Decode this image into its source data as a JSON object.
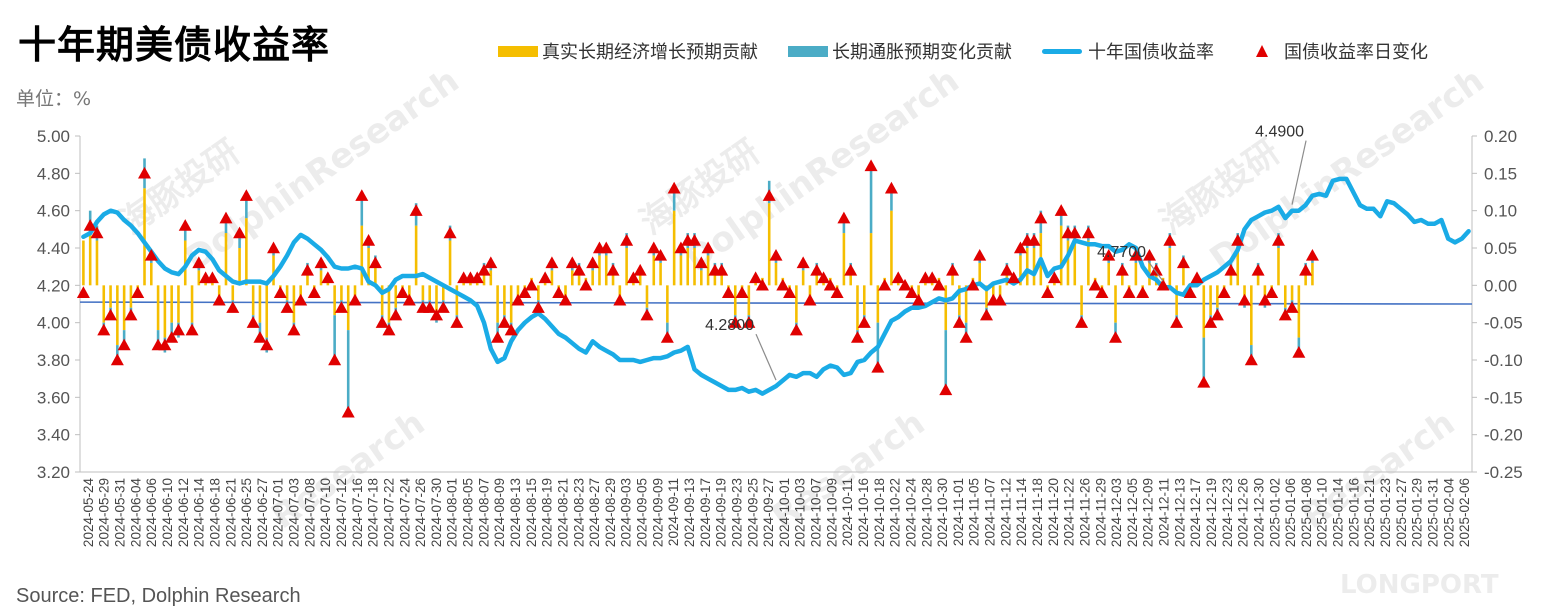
{
  "title": "十年期美债收益率",
  "unit_label": "单位：%",
  "source": "Source: FED, Dolphin Research",
  "watermarks": [
    "海豚投研",
    "DolphinResearch",
    "Research",
    "LONGPORT"
  ],
  "legend": [
    {
      "label": "真实长期经济增长预期贡献",
      "kind": "bar",
      "color": "#f5be00"
    },
    {
      "label": "长期通胀预期变化贡献",
      "kind": "bar",
      "color": "#4bacc6"
    },
    {
      "label": "十年国债收益率",
      "kind": "line",
      "color": "#1aabe6"
    },
    {
      "label": "国债收益率日变化",
      "kind": "marker",
      "color": "#e00000"
    }
  ],
  "annotations": [
    {
      "text": "4.2800",
      "date_index": 102
    },
    {
      "text": "4.7700",
      "date_index": 159
    },
    {
      "text": "4.4900",
      "date_index": 178
    }
  ],
  "chart_data": {
    "type": "line",
    "title": "十年期美债收益率",
    "ylabel": "%",
    "y_left": {
      "min": 3.2,
      "max": 5.0,
      "ticks": [
        "3.20",
        "3.40",
        "3.60",
        "3.80",
        "4.00",
        "4.20",
        "4.40",
        "4.60",
        "4.80",
        "5.00"
      ]
    },
    "y_right": {
      "min": -0.25,
      "max": 0.2,
      "ticks": [
        "-0.25",
        "-0.20",
        "-0.15",
        "-0.10",
        "-0.05",
        "0.00",
        "0.05",
        "0.10",
        "0.15",
        "0.20"
      ]
    },
    "x_tick_labels": [
      "2024-05-24",
      "2024-05-29",
      "2024-05-31",
      "2024-06-04",
      "2024-06-06",
      "2024-06-10",
      "2024-06-12",
      "2024-06-14",
      "2024-06-18",
      "2024-06-21",
      "2024-06-25",
      "2024-06-27",
      "2024-07-01",
      "2024-07-03",
      "2024-07-08",
      "2024-07-10",
      "2024-07-12",
      "2024-07-16",
      "2024-07-18",
      "2024-07-22",
      "2024-07-24",
      "2024-07-26",
      "2024-07-30",
      "2024-08-01",
      "2024-08-05",
      "2024-08-07",
      "2024-08-09",
      "2024-08-13",
      "2024-08-15",
      "2024-08-19",
      "2024-08-21",
      "2024-08-23",
      "2024-08-27",
      "2024-08-29",
      "2024-09-03",
      "2024-09-05",
      "2024-09-09",
      "2024-09-11",
      "2024-09-13",
      "2024-09-17",
      "2024-09-19",
      "2024-09-23",
      "2024-09-25",
      "2024-09-27",
      "2024-10-01",
      "2024-10-03",
      "2024-10-07",
      "2024-10-09",
      "2024-10-11",
      "2024-10-16",
      "2024-10-18",
      "2024-10-22",
      "2024-10-24",
      "2024-10-28",
      "2024-10-30",
      "2024-11-01",
      "2024-11-05",
      "2024-11-07",
      "2024-11-12",
      "2024-11-14",
      "2024-11-18",
      "2024-11-20",
      "2024-11-22",
      "2024-11-26",
      "2024-11-29",
      "2024-12-03",
      "2024-12-05",
      "2024-12-09",
      "2024-12-11",
      "2024-12-13",
      "2024-12-17",
      "2024-12-19",
      "2024-12-23",
      "2024-12-26",
      "2024-12-30",
      "2025-01-02",
      "2025-01-06",
      "2025-01-08",
      "2025-01-10",
      "2025-01-14",
      "2025-01-16",
      "2025-01-21",
      "2025-01-23",
      "2025-01-27",
      "2025-01-29",
      "2025-01-31",
      "2025-02-04",
      "2025-02-06"
    ],
    "trend_line": {
      "from": 4.11,
      "to": 4.1
    },
    "series": [
      {
        "name": "十年国债收益率",
        "axis": "left",
        "values": [
          4.46,
          4.48,
          4.54,
          4.58,
          4.6,
          4.59,
          4.55,
          4.52,
          4.48,
          4.43,
          4.38,
          4.33,
          4.29,
          4.27,
          4.26,
          4.3,
          4.36,
          4.39,
          4.38,
          4.34,
          4.28,
          4.25,
          4.22,
          4.21,
          4.22,
          4.22,
          4.22,
          4.21,
          4.25,
          4.3,
          4.36,
          4.43,
          4.47,
          4.45,
          4.42,
          4.39,
          4.35,
          4.3,
          4.29,
          4.29,
          4.3,
          4.29,
          4.22,
          4.2,
          4.16,
          4.18,
          4.23,
          4.25,
          4.25,
          4.25,
          4.26,
          4.24,
          4.22,
          4.2,
          4.18,
          4.16,
          4.14,
          4.12,
          4.09,
          4.0,
          3.86,
          3.79,
          3.81,
          3.9,
          3.96,
          4.0,
          4.03,
          4.05,
          4.02,
          3.98,
          3.94,
          3.92,
          3.89,
          3.86,
          3.84,
          3.9,
          3.87,
          3.85,
          3.83,
          3.8,
          3.8,
          3.8,
          3.79,
          3.8,
          3.81,
          3.81,
          3.82,
          3.84,
          3.85,
          3.87,
          3.75,
          3.72,
          3.7,
          3.68,
          3.66,
          3.64,
          3.64,
          3.65,
          3.63,
          3.64,
          3.62,
          3.64,
          3.66,
          3.69,
          3.72,
          3.71,
          3.73,
          3.73,
          3.71,
          3.75,
          3.77,
          3.76,
          3.72,
          3.73,
          3.79,
          3.8,
          3.84,
          3.87,
          3.94,
          4.01,
          4.03,
          4.06,
          4.08,
          4.08,
          4.09,
          4.11,
          4.13,
          4.12,
          4.13,
          4.17,
          4.18,
          4.2,
          4.21,
          4.18,
          4.21,
          4.22,
          4.23,
          4.21,
          4.23,
          4.28,
          4.26,
          4.34,
          4.25,
          4.29,
          4.3,
          4.36,
          4.44,
          4.43,
          4.42,
          4.42,
          4.41,
          4.41,
          4.38,
          4.39,
          4.42,
          4.4,
          4.3,
          4.25,
          4.23,
          4.19,
          4.19,
          4.16,
          4.15,
          4.2,
          4.2,
          4.23,
          4.25,
          4.27,
          4.3,
          4.33,
          4.39,
          4.5,
          4.55,
          4.57,
          4.59,
          4.6,
          4.62,
          4.56,
          4.6,
          4.6,
          4.63,
          4.68,
          4.69,
          4.68,
          4.76,
          4.77,
          4.77,
          4.7,
          4.63,
          4.61,
          4.61,
          4.57,
          4.65,
          4.64,
          4.61,
          4.58,
          4.54,
          4.55,
          4.53,
          4.53,
          4.55,
          4.45,
          4.43,
          4.45,
          4.49
        ]
      },
      {
        "name": "国债收益率日变化",
        "axis": "right",
        "values": [
          -0.01,
          0.08,
          0.07,
          -0.06,
          -0.04,
          -0.1,
          -0.08,
          -0.04,
          -0.01,
          0.15,
          0.04,
          -0.08,
          -0.08,
          -0.07,
          -0.06,
          0.08,
          -0.06,
          0.03,
          0.01,
          0.01,
          -0.02,
          0.09,
          -0.03,
          0.07,
          0.12,
          -0.05,
          -0.07,
          -0.08,
          0.05,
          -0.01,
          -0.03,
          -0.06,
          -0.02,
          0.02,
          -0.01,
          0.03,
          0.01,
          -0.1,
          -0.03,
          -0.17,
          -0.02,
          0.12,
          0.06,
          0.03,
          -0.05,
          -0.06,
          -0.04,
          -0.01,
          -0.02,
          0.1,
          -0.03,
          -0.03,
          -0.04,
          -0.03,
          0.07,
          -0.05,
          0.01,
          0.01,
          0.01,
          0.02,
          0.03,
          -0.07,
          -0.05,
          -0.06,
          -0.02,
          -0.01,
          0.0,
          -0.03,
          0.01,
          0.03,
          -0.01,
          -0.02,
          0.03,
          0.02,
          0.0,
          0.03,
          0.05,
          0.05,
          0.02,
          -0.02,
          0.06,
          0.01,
          0.02,
          -0.04,
          0.05,
          0.04,
          -0.07,
          0.13,
          0.05,
          0.06,
          0.06,
          0.03,
          0.05,
          0.02,
          0.02,
          -0.01,
          -0.05,
          -0.01,
          -0.05,
          0.01,
          0.0,
          0.12,
          0.04,
          0.0,
          -0.01,
          -0.06,
          0.03,
          -0.02,
          0.02,
          0.01,
          0.0,
          -0.01,
          0.09,
          0.02,
          -0.07,
          -0.05,
          0.16,
          -0.11,
          0.0,
          0.13,
          0.01,
          0.0,
          -0.01,
          -0.02,
          0.01,
          0.01,
          0.0,
          -0.14,
          0.02,
          -0.05,
          -0.07,
          0.0,
          0.04,
          -0.04,
          -0.02,
          -0.02,
          0.02,
          0.01,
          0.05,
          0.06,
          0.06,
          0.09,
          -0.01,
          0.01,
          0.1,
          0.07,
          0.07,
          -0.05,
          0.07,
          0.0,
          -0.01,
          0.04,
          -0.07,
          0.02,
          -0.01,
          0.04,
          -0.01,
          0.04,
          0.02,
          0.0,
          0.06,
          -0.05,
          0.03,
          -0.01,
          0.01,
          -0.13,
          -0.05,
          -0.04,
          -0.01,
          0.02,
          0.06,
          -0.02,
          -0.1,
          0.02,
          -0.02,
          -0.01,
          0.06,
          -0.04,
          -0.03,
          -0.09,
          0.02,
          0.04
        ]
      },
      {
        "name": "真实长期经济增长预期贡献",
        "axis": "right",
        "values": [
          0.06,
          0.08,
          0.06,
          -0.05,
          -0.03,
          -0.08,
          -0.06,
          -0.03,
          -0.01,
          0.13,
          0.03,
          -0.06,
          -0.07,
          -0.05,
          -0.05,
          0.06,
          -0.05,
          0.02,
          0.01,
          0.01,
          -0.02,
          0.07,
          -0.02,
          0.05,
          0.09,
          -0.04,
          -0.05,
          -0.07,
          0.04,
          -0.01,
          -0.02,
          -0.05,
          -0.02,
          0.02,
          -0.01,
          0.02,
          0.01,
          -0.04,
          -0.02,
          -0.06,
          -0.02,
          0.08,
          0.05,
          0.03,
          -0.04,
          -0.05,
          -0.03,
          -0.01,
          -0.02,
          0.08,
          -0.02,
          -0.02,
          -0.04,
          -0.02,
          0.06,
          -0.04,
          0.01,
          0.01,
          0.01,
          0.02,
          0.02,
          -0.05,
          -0.04,
          -0.05,
          -0.02,
          -0.01,
          0.01,
          -0.02,
          0.01,
          0.02,
          -0.01,
          -0.02,
          0.02,
          0.02,
          0.01,
          0.02,
          0.04,
          0.04,
          0.02,
          -0.02,
          0.05,
          0.01,
          0.02,
          -0.03,
          0.04,
          0.03,
          -0.05,
          0.1,
          0.04,
          0.05,
          0.05,
          0.02,
          0.04,
          0.02,
          0.02,
          -0.01,
          -0.04,
          -0.01,
          -0.04,
          0.01,
          0.01,
          0.11,
          0.03,
          0.01,
          -0.01,
          -0.05,
          0.02,
          -0.02,
          0.02,
          0.01,
          0.01,
          -0.01,
          0.07,
          0.02,
          -0.06,
          -0.04,
          0.07,
          -0.05,
          0.01,
          0.1,
          0.01,
          0.0,
          -0.01,
          -0.02,
          0.01,
          0.01,
          0.01,
          -0.06,
          0.02,
          -0.04,
          -0.05,
          0.01,
          0.03,
          -0.03,
          -0.02,
          -0.02,
          0.02,
          0.01,
          0.04,
          0.05,
          0.05,
          0.07,
          -0.01,
          0.01,
          0.08,
          0.06,
          0.06,
          -0.04,
          0.06,
          0.01,
          -0.01,
          0.03,
          -0.05,
          0.02,
          -0.01,
          0.03,
          -0.01,
          0.03,
          0.02,
          0.01,
          0.05,
          -0.04,
          0.03,
          -0.01,
          0.01,
          -0.07,
          -0.04,
          -0.03,
          -0.01,
          0.02,
          0.05,
          -0.02,
          -0.08,
          0.02,
          -0.02,
          -0.01,
          0.05,
          -0.03,
          -0.02,
          -0.07,
          0.02,
          0.03
        ]
      },
      {
        "name": "长期通胀预期变化贡献",
        "axis": "right",
        "values": [
          0.0,
          0.02,
          0.02,
          -0.01,
          -0.01,
          -0.02,
          -0.02,
          -0.01,
          0.0,
          0.04,
          0.01,
          -0.02,
          -0.02,
          -0.02,
          -0.02,
          0.02,
          -0.01,
          0.01,
          0.0,
          0.0,
          0.0,
          0.02,
          -0.01,
          0.02,
          0.03,
          -0.01,
          -0.02,
          -0.02,
          0.01,
          0.0,
          -0.01,
          -0.01,
          0.0,
          0.01,
          0.0,
          0.01,
          0.0,
          -0.06,
          -0.01,
          -0.11,
          0.0,
          0.04,
          0.01,
          0.01,
          -0.01,
          -0.01,
          -0.01,
          0.0,
          0.0,
          0.03,
          -0.01,
          -0.01,
          -0.01,
          -0.01,
          0.02,
          -0.01,
          0.0,
          0.0,
          0.0,
          0.01,
          0.01,
          -0.02,
          -0.01,
          -0.01,
          0.0,
          0.0,
          0.0,
          -0.01,
          0.0,
          0.01,
          0.0,
          0.0,
          0.01,
          0.01,
          0.0,
          0.01,
          0.01,
          0.01,
          0.01,
          0.0,
          0.02,
          0.0,
          0.0,
          -0.01,
          0.01,
          0.01,
          -0.02,
          0.03,
          0.01,
          0.02,
          0.02,
          0.01,
          0.01,
          0.01,
          0.01,
          0.0,
          -0.01,
          0.0,
          -0.01,
          0.0,
          0.0,
          0.03,
          0.01,
          0.0,
          0.0,
          -0.01,
          0.01,
          0.0,
          0.01,
          0.0,
          0.0,
          0.0,
          0.02,
          0.01,
          -0.01,
          -0.01,
          0.09,
          -0.06,
          0.0,
          0.03,
          0.0,
          0.0,
          0.0,
          0.0,
          0.0,
          0.0,
          0.0,
          -0.08,
          0.01,
          -0.01,
          -0.02,
          0.0,
          0.01,
          -0.01,
          0.0,
          0.0,
          0.01,
          0.0,
          0.01,
          0.02,
          0.02,
          0.03,
          0.0,
          0.0,
          0.02,
          0.02,
          0.02,
          -0.01,
          0.02,
          0.0,
          0.0,
          0.01,
          -0.02,
          0.01,
          0.0,
          0.01,
          0.0,
          0.01,
          0.01,
          0.0,
          0.02,
          -0.01,
          0.01,
          0.0,
          0.0,
          -0.06,
          -0.01,
          -0.01,
          0.0,
          0.01,
          0.02,
          -0.01,
          -0.02,
          0.01,
          -0.01,
          0.0,
          0.02,
          -0.01,
          -0.01,
          -0.02,
          0.01,
          0.01
        ]
      }
    ]
  }
}
